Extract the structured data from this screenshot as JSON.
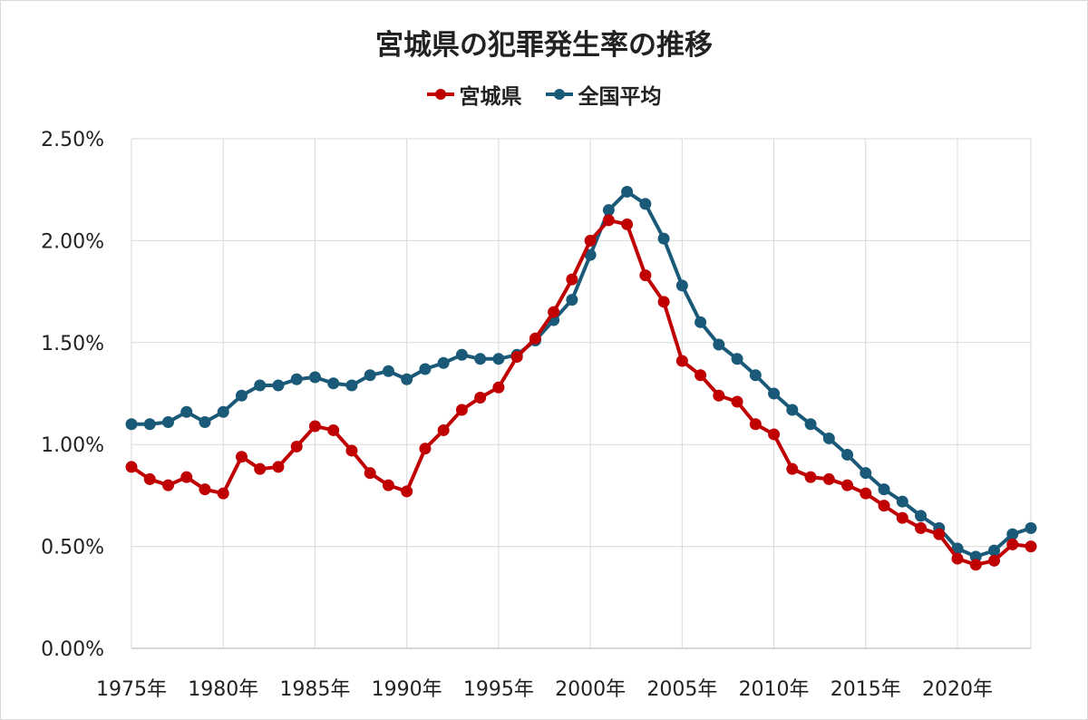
{
  "chart_data": {
    "type": "line",
    "title": "宮城県の犯罪発生率の推移",
    "xlabel": "",
    "ylabel": "",
    "ylim": [
      0,
      0.025
    ],
    "xlim": [
      1975,
      2024
    ],
    "yticks": [
      0,
      0.005,
      0.01,
      0.015,
      0.02,
      0.025
    ],
    "ytick_labels": [
      "0.00%",
      "0.50%",
      "1.00%",
      "1.50%",
      "2.00%",
      "2.50%"
    ],
    "xticks": [
      1975,
      1980,
      1985,
      1990,
      1995,
      2000,
      2005,
      2010,
      2015,
      2020
    ],
    "xtick_labels": [
      "1975年",
      "1980年",
      "1985年",
      "1990年",
      "1995年",
      "2000年",
      "2005年",
      "2010年",
      "2015年",
      "2020年"
    ],
    "grid": true,
    "legend_position": "top-center",
    "x": [
      1975,
      1976,
      1977,
      1978,
      1979,
      1980,
      1981,
      1982,
      1983,
      1984,
      1985,
      1986,
      1987,
      1988,
      1989,
      1990,
      1991,
      1992,
      1993,
      1994,
      1995,
      1996,
      1997,
      1998,
      1999,
      2000,
      2001,
      2002,
      2003,
      2004,
      2005,
      2006,
      2007,
      2008,
      2009,
      2010,
      2011,
      2012,
      2013,
      2014,
      2015,
      2016,
      2017,
      2018,
      2019,
      2020,
      2021,
      2022,
      2023,
      2024
    ],
    "series": [
      {
        "name": "宮城県",
        "color": "#c00000",
        "values": [
          0.0089,
          0.0083,
          0.008,
          0.0084,
          0.0078,
          0.0076,
          0.0094,
          0.0088,
          0.0089,
          0.0099,
          0.0109,
          0.0107,
          0.0097,
          0.0086,
          0.008,
          0.0077,
          0.0098,
          0.0107,
          0.0117,
          0.0123,
          0.0128,
          0.0143,
          0.0152,
          0.0165,
          0.0181,
          0.02,
          0.021,
          0.0208,
          0.0183,
          0.017,
          0.0141,
          0.0134,
          0.0124,
          0.0121,
          0.011,
          0.0105,
          0.0088,
          0.0084,
          0.0083,
          0.008,
          0.0076,
          0.007,
          0.0064,
          0.0059,
          0.0056,
          0.0044,
          0.0041,
          0.0043,
          0.0051,
          0.005
        ]
      },
      {
        "name": "全国平均",
        "color": "#1a5a78",
        "values": [
          0.011,
          0.011,
          0.0111,
          0.0116,
          0.0111,
          0.0116,
          0.0124,
          0.0129,
          0.0129,
          0.0132,
          0.0133,
          0.013,
          0.0129,
          0.0134,
          0.0136,
          0.0132,
          0.0137,
          0.014,
          0.0144,
          0.0142,
          0.0142,
          0.0144,
          0.0151,
          0.0161,
          0.0171,
          0.0193,
          0.0215,
          0.0224,
          0.0218,
          0.0201,
          0.0178,
          0.016,
          0.0149,
          0.0142,
          0.0134,
          0.0125,
          0.0117,
          0.011,
          0.0103,
          0.0095,
          0.0086,
          0.0078,
          0.0072,
          0.0065,
          0.0059,
          0.0049,
          0.0045,
          0.0048,
          0.0056,
          0.0059
        ]
      }
    ]
  }
}
